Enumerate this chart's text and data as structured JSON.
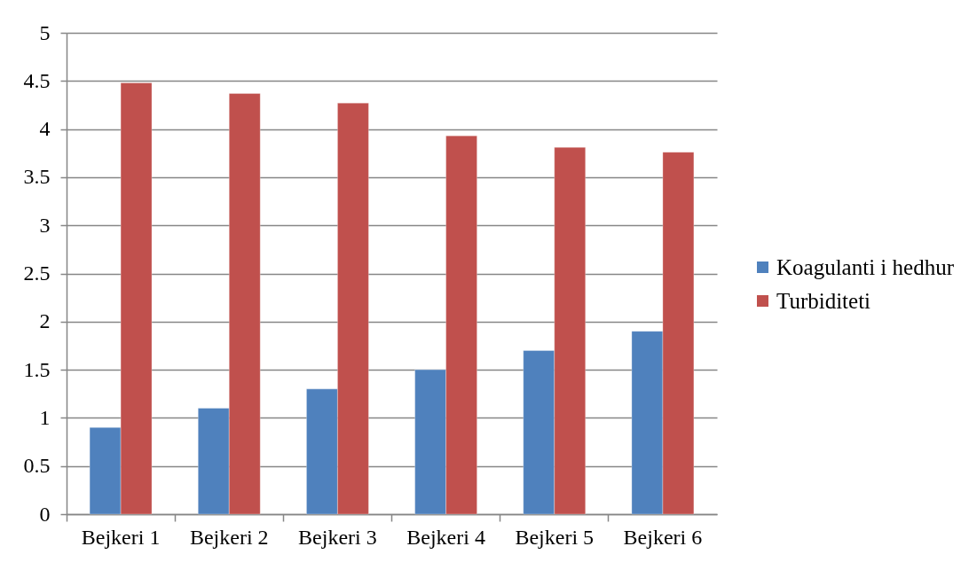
{
  "chart_data": {
    "type": "bar",
    "categories": [
      "Bejkeri 1",
      "Bejkeri 2",
      "Bejkeri 3",
      "Bejkeri 4",
      "Bejkeri 5",
      "Bejkeri 6"
    ],
    "series": [
      {
        "name": "Koagulanti i hedhur",
        "color": "#4f81bd",
        "values": [
          0.9,
          1.1,
          1.3,
          1.5,
          1.7,
          1.9
        ]
      },
      {
        "name": "Turbiditeti",
        "color": "#c0504d",
        "values": [
          4.48,
          4.37,
          4.27,
          3.93,
          3.81,
          3.76
        ]
      }
    ],
    "ylim": [
      0,
      5
    ],
    "yticks": [
      0,
      0.5,
      1,
      1.5,
      2,
      2.5,
      3,
      3.5,
      4,
      4.5,
      5
    ],
    "grid": "y",
    "legend": "right"
  }
}
